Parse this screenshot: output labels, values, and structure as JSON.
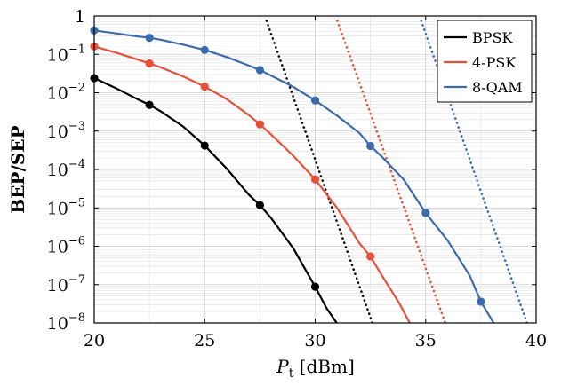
{
  "chart_data": {
    "type": "line",
    "xlabel_main": "P",
    "xlabel_sub": "t",
    "xlabel_unit": " [dBm]",
    "ylabel": "BEP/SEP",
    "xlim": [
      20,
      40
    ],
    "ylim": [
      1e-08,
      1
    ],
    "y_scale": "log",
    "grid": true,
    "legend_position": "top-right",
    "x_ticks": [
      20,
      25,
      30,
      35,
      40
    ],
    "y_ticks": [
      {
        "value": 1,
        "base": "1",
        "exp": ""
      },
      {
        "value": 0.1,
        "base": "10",
        "exp": "−1"
      },
      {
        "value": 0.01,
        "base": "10",
        "exp": "−2"
      },
      {
        "value": 0.001,
        "base": "10",
        "exp": "−3"
      },
      {
        "value": 0.0001,
        "base": "10",
        "exp": "−4"
      },
      {
        "value": 1e-05,
        "base": "10",
        "exp": "−5"
      },
      {
        "value": 1e-06,
        "base": "10",
        "exp": "−6"
      },
      {
        "value": 1e-07,
        "base": "10",
        "exp": "−7"
      },
      {
        "value": 1e-08,
        "base": "10",
        "exp": "−8"
      }
    ],
    "series": [
      {
        "name": "BPSK",
        "color": "#000000",
        "curve": [
          [
            20,
            0.024
          ],
          [
            21,
            0.013
          ],
          [
            22,
            0.0066
          ],
          [
            22.5,
            0.0048
          ],
          [
            23,
            0.0033
          ],
          [
            24,
            0.00135
          ],
          [
            25,
            0.00042
          ],
          [
            26,
            0.000105
          ],
          [
            27,
            2.2e-05
          ],
          [
            27.5,
            1.18e-05
          ],
          [
            28,
            5.5e-06
          ],
          [
            29,
            9e-07
          ],
          [
            30,
            8.8e-08
          ],
          [
            30.5,
            2.5e-08
          ],
          [
            31.0,
            9.5e-09
          ]
        ],
        "markers": [
          [
            20,
            0.024
          ],
          [
            22.5,
            0.0048
          ],
          [
            25,
            0.00042
          ],
          [
            27.5,
            1.18e-05
          ],
          [
            30,
            8.8e-08
          ]
        ],
        "asymptote": [
          [
            27.8,
            0.75
          ],
          [
            32.6,
            9.5e-09
          ]
        ]
      },
      {
        "name": "4-PSK",
        "color": "#e8503a",
        "curve": [
          [
            20,
            0.16
          ],
          [
            21,
            0.11
          ],
          [
            22,
            0.072
          ],
          [
            22.5,
            0.058
          ],
          [
            23,
            0.046
          ],
          [
            24,
            0.027
          ],
          [
            25,
            0.0145
          ],
          [
            26,
            0.0068
          ],
          [
            27,
            0.0026
          ],
          [
            27.5,
            0.0015
          ],
          [
            28,
            0.00082
          ],
          [
            29,
            0.00023
          ],
          [
            30,
            5.5e-05
          ],
          [
            31,
            9.8e-06
          ],
          [
            32,
            1.2e-06
          ],
          [
            32.5,
            5.4e-07
          ],
          [
            33,
            1.8e-07
          ],
          [
            33.8,
            3.3e-08
          ],
          [
            34.3,
            9.5e-09
          ]
        ],
        "markers": [
          [
            20,
            0.16
          ],
          [
            22.5,
            0.058
          ],
          [
            25,
            0.0145
          ],
          [
            27.5,
            0.0015
          ],
          [
            30,
            5.5e-05
          ],
          [
            32.5,
            5.4e-07
          ]
        ],
        "asymptote": [
          [
            31.0,
            0.75
          ],
          [
            35.9,
            9.5e-09
          ]
        ]
      },
      {
        "name": "8-QAM",
        "color": "#3b6bab",
        "curve": [
          [
            20,
            0.42
          ],
          [
            21,
            0.35
          ],
          [
            22,
            0.29
          ],
          [
            22.5,
            0.27
          ],
          [
            23,
            0.24
          ],
          [
            24,
            0.18
          ],
          [
            25,
            0.13
          ],
          [
            26,
            0.085
          ],
          [
            27,
            0.051
          ],
          [
            27.5,
            0.039
          ],
          [
            28,
            0.028
          ],
          [
            29,
            0.0143
          ],
          [
            30,
            0.0063
          ],
          [
            31,
            0.0025
          ],
          [
            32,
            0.00089
          ],
          [
            32.5,
            0.00041
          ],
          [
            33,
            0.00022
          ],
          [
            34,
            5.5e-05
          ],
          [
            35,
            7.4e-06
          ],
          [
            36,
            1.4e-06
          ],
          [
            37,
            1.7e-07
          ],
          [
            37.5,
            3.6e-08
          ],
          [
            38.1,
            9.5e-09
          ]
        ],
        "markers": [
          [
            20,
            0.42
          ],
          [
            22.5,
            0.27
          ],
          [
            25,
            0.13
          ],
          [
            27.5,
            0.039
          ],
          [
            30,
            0.0063
          ],
          [
            32.5,
            0.00041
          ],
          [
            35,
            7.4e-06
          ],
          [
            37.5,
            3.6e-08
          ]
        ],
        "asymptote": [
          [
            34.8,
            0.75
          ],
          [
            39.6,
            9.5e-09
          ]
        ]
      }
    ]
  }
}
